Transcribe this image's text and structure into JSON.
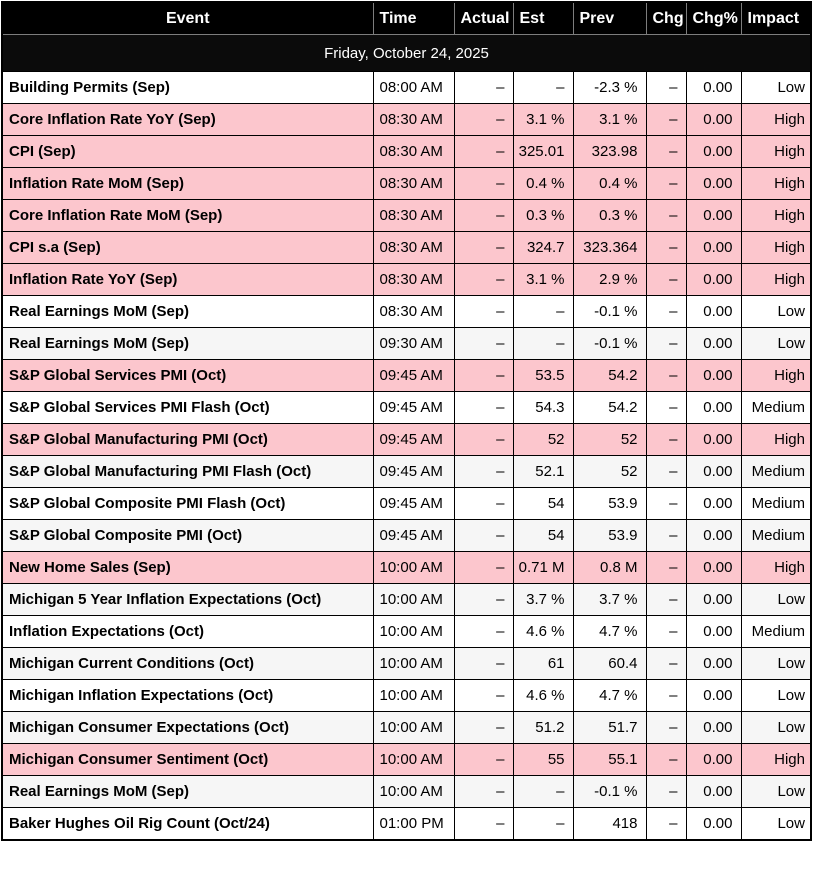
{
  "colors": {
    "header_bg": "#000000",
    "header_text": "#ffffff",
    "high_row": "#fcc6cd",
    "alt_row": "#f6f6f6",
    "white_row": "#ffffff",
    "border": "#000000"
  },
  "table": {
    "date_header": "Friday, October 24, 2025",
    "columns": [
      {
        "key": "event",
        "label": "Event"
      },
      {
        "key": "time",
        "label": "Time"
      },
      {
        "key": "actual",
        "label": "Actual"
      },
      {
        "key": "est",
        "label": "Est"
      },
      {
        "key": "prev",
        "label": "Prev"
      },
      {
        "key": "chg",
        "label": "Chg"
      },
      {
        "key": "chgpct",
        "label": "Chg%"
      },
      {
        "key": "impact",
        "label": "Impact"
      }
    ],
    "rows": [
      {
        "event": "Building Permits (Sep)",
        "time": "08:00 AM",
        "actual": "–",
        "est": "–",
        "prev": "-2.3 %",
        "chg": "–",
        "chgpct": "0.00",
        "impact": "Low",
        "bg": "white"
      },
      {
        "event": "Core Inflation Rate YoY (Sep)",
        "time": "08:30 AM",
        "actual": "–",
        "est": "3.1 %",
        "prev": "3.1 %",
        "chg": "–",
        "chgpct": "0.00",
        "impact": "High",
        "bg": "high"
      },
      {
        "event": "CPI (Sep)",
        "time": "08:30 AM",
        "actual": "–",
        "est": "325.01",
        "prev": "323.98",
        "chg": "–",
        "chgpct": "0.00",
        "impact": "High",
        "bg": "high"
      },
      {
        "event": "Inflation Rate MoM (Sep)",
        "time": "08:30 AM",
        "actual": "–",
        "est": "0.4 %",
        "prev": "0.4 %",
        "chg": "–",
        "chgpct": "0.00",
        "impact": "High",
        "bg": "high"
      },
      {
        "event": "Core Inflation Rate MoM (Sep)",
        "time": "08:30 AM",
        "actual": "–",
        "est": "0.3 %",
        "prev": "0.3 %",
        "chg": "–",
        "chgpct": "0.00",
        "impact": "High",
        "bg": "high"
      },
      {
        "event": "CPI s.a (Sep)",
        "time": "08:30 AM",
        "actual": "–",
        "est": "324.7",
        "prev": "323.364",
        "chg": "–",
        "chgpct": "0.00",
        "impact": "High",
        "bg": "high"
      },
      {
        "event": "Inflation Rate YoY (Sep)",
        "time": "08:30 AM",
        "actual": "–",
        "est": "3.1 %",
        "prev": "2.9 %",
        "chg": "–",
        "chgpct": "0.00",
        "impact": "High",
        "bg": "high"
      },
      {
        "event": "Real Earnings MoM (Sep)",
        "time": "08:30 AM",
        "actual": "–",
        "est": "–",
        "prev": "-0.1 %",
        "chg": "–",
        "chgpct": "0.00",
        "impact": "Low",
        "bg": "white"
      },
      {
        "event": "Real Earnings MoM (Sep)",
        "time": "09:30 AM",
        "actual": "–",
        "est": "–",
        "prev": "-0.1 %",
        "chg": "–",
        "chgpct": "0.00",
        "impact": "Low",
        "bg": "gray"
      },
      {
        "event": "S&P Global Services PMI (Oct)",
        "time": "09:45 AM",
        "actual": "–",
        "est": "53.5",
        "prev": "54.2",
        "chg": "–",
        "chgpct": "0.00",
        "impact": "High",
        "bg": "high"
      },
      {
        "event": "S&P Global Services PMI Flash (Oct)",
        "time": "09:45 AM",
        "actual": "–",
        "est": "54.3",
        "prev": "54.2",
        "chg": "–",
        "chgpct": "0.00",
        "impact": "Medium",
        "bg": "white"
      },
      {
        "event": "S&P Global Manufacturing PMI (Oct)",
        "time": "09:45 AM",
        "actual": "–",
        "est": "52",
        "prev": "52",
        "chg": "–",
        "chgpct": "0.00",
        "impact": "High",
        "bg": "high"
      },
      {
        "event": "S&P Global Manufacturing PMI Flash (Oct)",
        "time": "09:45 AM",
        "actual": "–",
        "est": "52.1",
        "prev": "52",
        "chg": "–",
        "chgpct": "0.00",
        "impact": "Medium",
        "bg": "gray"
      },
      {
        "event": "S&P Global Composite PMI Flash (Oct)",
        "time": "09:45 AM",
        "actual": "–",
        "est": "54",
        "prev": "53.9",
        "chg": "–",
        "chgpct": "0.00",
        "impact": "Medium",
        "bg": "white"
      },
      {
        "event": "S&P Global Composite PMI (Oct)",
        "time": "09:45 AM",
        "actual": "–",
        "est": "54",
        "prev": "53.9",
        "chg": "–",
        "chgpct": "0.00",
        "impact": "Medium",
        "bg": "gray"
      },
      {
        "event": "New Home Sales (Sep)",
        "time": "10:00 AM",
        "actual": "–",
        "est": "0.71 M",
        "prev": "0.8 M",
        "chg": "–",
        "chgpct": "0.00",
        "impact": "High",
        "bg": "high"
      },
      {
        "event": "Michigan 5 Year Inflation Expectations (Oct)",
        "time": "10:00 AM",
        "actual": "–",
        "est": "3.7 %",
        "prev": "3.7 %",
        "chg": "–",
        "chgpct": "0.00",
        "impact": "Low",
        "bg": "gray"
      },
      {
        "event": "Inflation Expectations (Oct)",
        "time": "10:00 AM",
        "actual": "–",
        "est": "4.6 %",
        "prev": "4.7 %",
        "chg": "–",
        "chgpct": "0.00",
        "impact": "Medium",
        "bg": "white"
      },
      {
        "event": "Michigan Current Conditions (Oct)",
        "time": "10:00 AM",
        "actual": "–",
        "est": "61",
        "prev": "60.4",
        "chg": "–",
        "chgpct": "0.00",
        "impact": "Low",
        "bg": "gray"
      },
      {
        "event": "Michigan Inflation Expectations (Oct)",
        "time": "10:00 AM",
        "actual": "–",
        "est": "4.6 %",
        "prev": "4.7 %",
        "chg": "–",
        "chgpct": "0.00",
        "impact": "Low",
        "bg": "white"
      },
      {
        "event": "Michigan Consumer Expectations (Oct)",
        "time": "10:00 AM",
        "actual": "–",
        "est": "51.2",
        "prev": "51.7",
        "chg": "–",
        "chgpct": "0.00",
        "impact": "Low",
        "bg": "gray"
      },
      {
        "event": "Michigan Consumer Sentiment (Oct)",
        "time": "10:00 AM",
        "actual": "–",
        "est": "55",
        "prev": "55.1",
        "chg": "–",
        "chgpct": "0.00",
        "impact": "High",
        "bg": "high"
      },
      {
        "event": "Real Earnings MoM (Sep)",
        "time": "10:00 AM",
        "actual": "–",
        "est": "–",
        "prev": "-0.1 %",
        "chg": "–",
        "chgpct": "0.00",
        "impact": "Low",
        "bg": "gray"
      },
      {
        "event": "Baker Hughes Oil Rig Count (Oct/24)",
        "time": "01:00 PM",
        "actual": "–",
        "est": "–",
        "prev": "418",
        "chg": "–",
        "chgpct": "0.00",
        "impact": "Low",
        "bg": "white"
      }
    ]
  }
}
